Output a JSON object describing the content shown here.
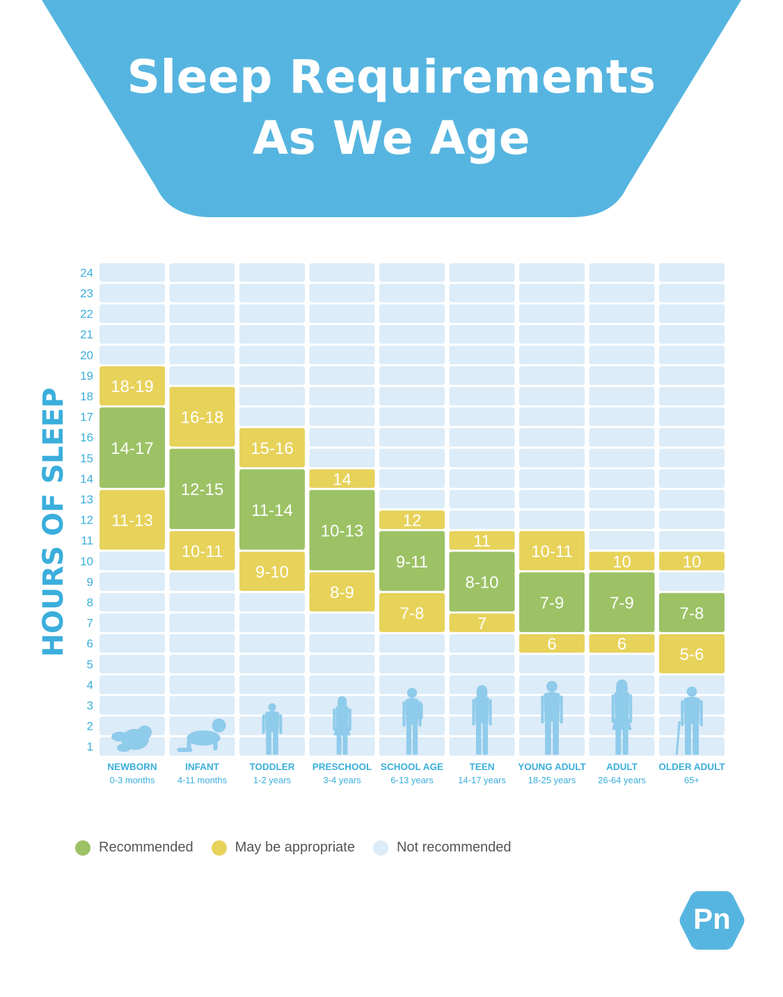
{
  "title_line1": "Sleep Requirements",
  "title_line2": "As We Age",
  "colors": {
    "header": "#56b5e0",
    "recommended": "#9cc265",
    "may_be_appropriate": "#e7d25a",
    "not_recommended": "#dcecf8",
    "axis_text": "#3aaedc",
    "category_text": "#3aaedc",
    "silhouette": "#8fcbeb"
  },
  "legend": {
    "recommended": "Recommended",
    "may_be_appropriate": "May be appropriate",
    "not_recommended": "Not recommended"
  },
  "logo": "Pn",
  "chart_data": {
    "type": "table",
    "ylabel": "HOURS OF SLEEP",
    "y_ticks": [
      1,
      2,
      3,
      4,
      5,
      6,
      7,
      8,
      9,
      10,
      11,
      12,
      13,
      14,
      15,
      16,
      17,
      18,
      19,
      20,
      21,
      22,
      23,
      24
    ],
    "ylim": [
      0,
      24
    ],
    "groups": [
      {
        "name": "NEWBORN",
        "sub": "0-3 months",
        "icon": "newborn-baby-icon",
        "ranges": [
          {
            "label": "18-19",
            "from": 18,
            "to": 19,
            "status": "may_be_appropriate"
          },
          {
            "label": "14-17",
            "from": 14,
            "to": 17,
            "status": "recommended"
          },
          {
            "label": "11-13",
            "from": 11,
            "to": 13,
            "status": "may_be_appropriate"
          }
        ]
      },
      {
        "name": "INFANT",
        "sub": "4-11 months",
        "icon": "crawling-infant-icon",
        "ranges": [
          {
            "label": "16-18",
            "from": 16,
            "to": 18,
            "status": "may_be_appropriate"
          },
          {
            "label": "12-15",
            "from": 12,
            "to": 15,
            "status": "recommended"
          },
          {
            "label": "10-11",
            "from": 10,
            "to": 11,
            "status": "may_be_appropriate"
          }
        ]
      },
      {
        "name": "TODDLER",
        "sub": "1-2 years",
        "icon": "toddler-icon",
        "ranges": [
          {
            "label": "15-16",
            "from": 15,
            "to": 16,
            "status": "may_be_appropriate"
          },
          {
            "label": "11-14",
            "from": 11,
            "to": 14,
            "status": "recommended"
          },
          {
            "label": "9-10",
            "from": 9,
            "to": 10,
            "status": "may_be_appropriate"
          }
        ]
      },
      {
        "name": "PRESCHOOL",
        "sub": "3-4 years",
        "icon": "preschooler-icon",
        "ranges": [
          {
            "label": "14",
            "from": 14,
            "to": 14,
            "status": "may_be_appropriate"
          },
          {
            "label": "10-13",
            "from": 10,
            "to": 13,
            "status": "recommended"
          },
          {
            "label": "8-9",
            "from": 8,
            "to": 9,
            "status": "may_be_appropriate"
          }
        ]
      },
      {
        "name": "SCHOOL AGE",
        "sub": "6-13 years",
        "icon": "school-child-icon",
        "ranges": [
          {
            "label": "12",
            "from": 12,
            "to": 12,
            "status": "may_be_appropriate"
          },
          {
            "label": "9-11",
            "from": 9,
            "to": 11,
            "status": "recommended"
          },
          {
            "label": "7-8",
            "from": 7,
            "to": 8,
            "status": "may_be_appropriate"
          }
        ]
      },
      {
        "name": "TEEN",
        "sub": "14-17 years",
        "icon": "teen-icon",
        "ranges": [
          {
            "label": "11",
            "from": 11,
            "to": 11,
            "status": "may_be_appropriate"
          },
          {
            "label": "8-10",
            "from": 8,
            "to": 10,
            "status": "recommended"
          },
          {
            "label": "7",
            "from": 7,
            "to": 7,
            "status": "may_be_appropriate"
          }
        ]
      },
      {
        "name": "YOUNG ADULT",
        "sub": "18-25 years",
        "icon": "young-adult-icon",
        "ranges": [
          {
            "label": "10-11",
            "from": 10,
            "to": 11,
            "status": "may_be_appropriate"
          },
          {
            "label": "7-9",
            "from": 7,
            "to": 9,
            "status": "recommended"
          },
          {
            "label": "6",
            "from": 6,
            "to": 6,
            "status": "may_be_appropriate"
          }
        ]
      },
      {
        "name": "ADULT",
        "sub": "26-64 years",
        "icon": "adult-icon",
        "ranges": [
          {
            "label": "10",
            "from": 10,
            "to": 10,
            "status": "may_be_appropriate"
          },
          {
            "label": "7-9",
            "from": 7,
            "to": 9,
            "status": "recommended"
          },
          {
            "label": "6",
            "from": 6,
            "to": 6,
            "status": "may_be_appropriate"
          }
        ]
      },
      {
        "name": "OLDER ADULT",
        "sub": "65+",
        "icon": "older-adult-with-cane-icon",
        "ranges": [
          {
            "label": "10",
            "from": 10,
            "to": 10,
            "status": "may_be_appropriate"
          },
          {
            "label": "7-8",
            "from": 7,
            "to": 8,
            "status": "recommended"
          },
          {
            "label": "5-6",
            "from": 5,
            "to": 6,
            "status": "may_be_appropriate"
          }
        ]
      }
    ]
  }
}
